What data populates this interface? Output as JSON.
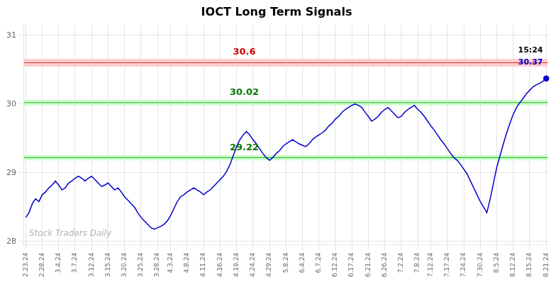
{
  "chart_data": {
    "type": "line",
    "title": "IOCT Long Term Signals",
    "color": "#0000cc",
    "background_color": "#ffffff",
    "grid": true,
    "ylim": [
      27.95,
      31.15
    ],
    "yticks": [
      28,
      29,
      30,
      31
    ],
    "categories": [
      "2.23.24",
      null,
      null,
      null,
      null,
      "2.28.24",
      null,
      null,
      null,
      null,
      "3.4.24",
      null,
      null,
      null,
      null,
      "3.7.24",
      null,
      null,
      null,
      null,
      "3.12.24",
      null,
      null,
      null,
      null,
      "3.15.24",
      null,
      null,
      null,
      null,
      "3.20.24",
      null,
      null,
      null,
      null,
      "3.25.24",
      null,
      null,
      null,
      null,
      "3.28.24",
      null,
      null,
      null,
      "4.3.24",
      null,
      null,
      null,
      null,
      "4.8.24",
      null,
      null,
      null,
      null,
      "4.11.24",
      null,
      null,
      null,
      null,
      "4.16.24",
      null,
      null,
      null,
      null,
      "4.19.24",
      null,
      null,
      null,
      null,
      "4.24.24",
      null,
      null,
      null,
      null,
      "4.29.24",
      null,
      null,
      null,
      null,
      "5.8.24",
      null,
      null,
      null,
      null,
      "6.4.24",
      null,
      null,
      null,
      null,
      "6.7.24",
      null,
      null,
      null,
      null,
      "6.12.24",
      null,
      null,
      null,
      null,
      "6.17.24",
      null,
      null,
      null,
      null,
      "6.21.24",
      null,
      null,
      null,
      null,
      "6.26.24",
      null,
      null,
      null,
      null,
      "7.2.24",
      null,
      null,
      null,
      null,
      "7.8.24",
      null,
      null,
      null,
      "7.12.24",
      null,
      null,
      null,
      null,
      "7.17.24",
      null,
      null,
      null,
      null,
      "7.24.24",
      null,
      null,
      null,
      null,
      "7.30.24",
      null,
      null,
      null,
      null,
      "8.5.24",
      null,
      null,
      null,
      null,
      "8.12.24",
      null,
      null,
      null,
      null,
      "8.15.24",
      null,
      null,
      null,
      null,
      "8.21.24"
    ],
    "values": [
      28.35,
      28.42,
      28.55,
      28.62,
      28.58,
      28.68,
      28.72,
      28.78,
      28.82,
      28.88,
      28.82,
      28.75,
      28.78,
      28.85,
      28.88,
      28.92,
      28.95,
      28.92,
      28.88,
      28.92,
      28.95,
      28.9,
      28.85,
      28.8,
      28.82,
      28.85,
      28.8,
      28.75,
      28.78,
      28.72,
      28.65,
      28.6,
      28.55,
      28.5,
      28.42,
      28.35,
      28.3,
      28.25,
      28.2,
      28.18,
      28.2,
      28.22,
      28.25,
      28.3,
      28.38,
      28.48,
      28.58,
      28.65,
      28.68,
      28.72,
      28.75,
      28.78,
      28.75,
      28.72,
      28.68,
      28.72,
      28.75,
      28.8,
      28.85,
      28.9,
      28.95,
      29.02,
      29.12,
      29.25,
      29.38,
      29.48,
      29.55,
      29.6,
      29.55,
      29.48,
      29.42,
      29.35,
      29.28,
      29.22,
      29.18,
      29.22,
      29.28,
      29.32,
      29.38,
      29.42,
      29.45,
      29.48,
      29.45,
      29.42,
      29.4,
      29.38,
      29.42,
      29.48,
      29.52,
      29.55,
      29.58,
      29.62,
      29.68,
      29.72,
      29.78,
      29.82,
      29.88,
      29.92,
      29.95,
      29.98,
      30.0,
      29.98,
      29.95,
      29.88,
      29.82,
      29.75,
      29.78,
      29.82,
      29.88,
      29.92,
      29.95,
      29.9,
      29.85,
      29.8,
      29.82,
      29.88,
      29.92,
      29.95,
      29.98,
      29.92,
      29.88,
      29.82,
      29.75,
      29.68,
      29.62,
      29.55,
      29.48,
      29.42,
      29.35,
      29.28,
      29.22,
      29.18,
      29.12,
      29.05,
      28.98,
      28.88,
      28.78,
      28.68,
      28.58,
      28.5,
      28.42,
      28.62,
      28.85,
      29.08,
      29.25,
      29.42,
      29.58,
      29.72,
      29.85,
      29.95,
      30.02,
      30.08,
      30.15,
      30.2,
      30.25,
      30.28,
      30.3,
      30.33,
      30.37
    ],
    "hlines": [
      {
        "value": 30.6,
        "label": "30.6",
        "color": "#dd3333",
        "band_color": "#ffcccc",
        "label_color": "#cc0000"
      },
      {
        "value": 30.02,
        "label": "30.02",
        "color": "#22aa22",
        "band_color": "#ccffcc",
        "label_color": "#007700"
      },
      {
        "value": 29.22,
        "label": "29.22",
        "color": "#22aa22",
        "band_color": "#ccffcc",
        "label_color": "#007700"
      }
    ],
    "annotations": [
      {
        "text": "15:24"
      },
      {
        "text": "30.37",
        "value": 30.37,
        "color": "#0000cc"
      }
    ],
    "watermark": "Stock Traders Daily"
  }
}
